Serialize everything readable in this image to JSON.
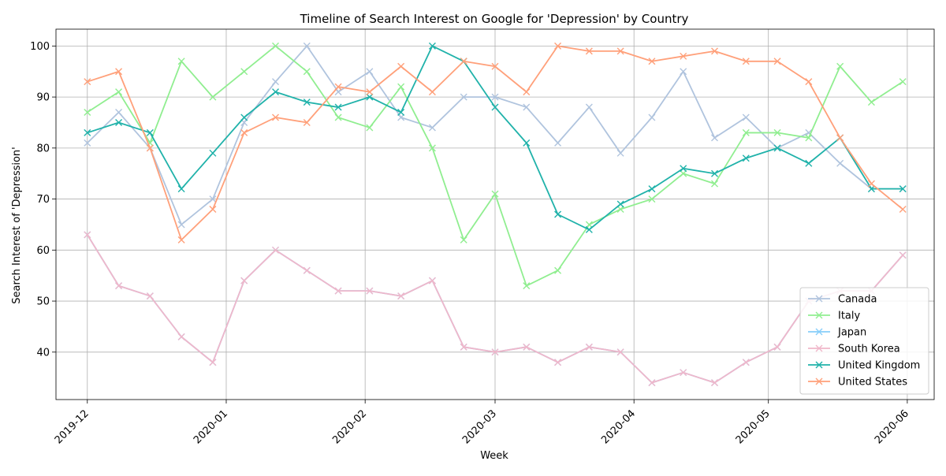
{
  "chart_data": {
    "type": "line",
    "title": "Timeline of Search Interest on Google for 'Depression' by Country",
    "xlabel": "Week",
    "ylabel": "Search Interest of 'Depression'",
    "x_tick_labels": [
      "2019-12",
      "2020-01",
      "2020-02",
      "2020-03",
      "2020-04",
      "2020-05",
      "2020-06"
    ],
    "x_tick_dates": [
      "2019-12-01",
      "2020-01-01",
      "2020-02-01",
      "2020-03-01",
      "2020-04-01",
      "2020-05-01",
      "2020-06-01"
    ],
    "y_ticks": [
      40,
      50,
      60,
      70,
      80,
      90,
      100
    ],
    "xlim": [
      "2019-11-24",
      "2020-06-07"
    ],
    "ylim": [
      30.7,
      103.3
    ],
    "grid": true,
    "legend_position": "bottom-right",
    "marker": "x",
    "x": [
      "2019-12-01",
      "2019-12-08",
      "2019-12-15",
      "2019-12-22",
      "2019-12-29",
      "2020-01-05",
      "2020-01-12",
      "2020-01-19",
      "2020-01-26",
      "2020-02-02",
      "2020-02-09",
      "2020-02-16",
      "2020-02-23",
      "2020-03-01",
      "2020-03-08",
      "2020-03-15",
      "2020-03-22",
      "2020-03-29",
      "2020-04-05",
      "2020-04-12",
      "2020-04-19",
      "2020-04-26",
      "2020-05-03",
      "2020-05-10",
      "2020-05-17",
      "2020-05-24",
      "2020-05-31"
    ],
    "series": [
      {
        "name": "Canada",
        "color": "#b0c4de",
        "values": [
          81,
          87,
          80,
          65,
          70,
          85,
          93,
          100,
          91,
          95,
          86,
          84,
          90,
          90,
          88,
          81,
          88,
          79,
          86,
          95,
          82,
          86,
          80,
          83,
          77,
          72,
          72
        ]
      },
      {
        "name": "Italy",
        "color": "#90ee90",
        "values": [
          87,
          91,
          81,
          97,
          90,
          95,
          100,
          95,
          86,
          84,
          92,
          80,
          62,
          71,
          53,
          56,
          65,
          68,
          70,
          75,
          73,
          83,
          83,
          82,
          96,
          89,
          93
        ]
      },
      {
        "name": "Japan",
        "color": "#87cefa",
        "values": [
          63,
          53,
          51,
          43,
          38,
          54,
          60,
          56,
          52,
          52,
          51,
          54,
          41,
          40,
          41,
          38,
          41,
          40,
          34,
          36,
          34,
          38,
          41,
          50,
          52,
          52,
          59
        ]
      },
      {
        "name": "South Korea",
        "color": "#f0b7ca",
        "values": [
          63,
          53,
          51,
          43,
          38,
          54,
          60,
          56,
          52,
          52,
          51,
          54,
          41,
          40,
          41,
          38,
          41,
          40,
          34,
          36,
          34,
          38,
          41,
          50,
          52,
          52,
          59
        ]
      },
      {
        "name": "United Kingdom",
        "color": "#20b2aa",
        "values": [
          83,
          85,
          83,
          72,
          79,
          86,
          91,
          89,
          88,
          90,
          87,
          100,
          97,
          88,
          81,
          67,
          64,
          69,
          72,
          76,
          75,
          78,
          80,
          77,
          82,
          72,
          72
        ]
      },
      {
        "name": "United States",
        "color": "#ffa07a",
        "values": [
          93,
          95,
          80,
          62,
          68,
          83,
          86,
          85,
          92,
          91,
          96,
          91,
          97,
          96,
          91,
          100,
          99,
          99,
          97,
          98,
          99,
          97,
          97,
          93,
          82,
          73,
          68
        ]
      }
    ]
  }
}
